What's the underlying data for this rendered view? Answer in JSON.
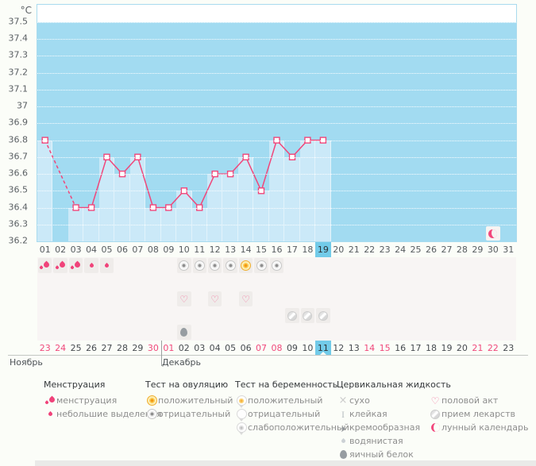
{
  "colors": {
    "accent_pink": "#f0467a",
    "plot_background": "#a2dbf1",
    "bar_fill": "#cbe9f8",
    "selected_day_highlight": "#72cbe9",
    "weekend_text": "#f0497b"
  },
  "chart_data": {
    "type": "line",
    "unit": "°C",
    "ylim": [
      36.2,
      37.5
    ],
    "yticks": [
      "37.5",
      "37.4",
      "37.3",
      "37.2",
      "37.1",
      "37",
      "36.9",
      "36.8",
      "36.7",
      "36.6",
      "36.5",
      "36.4",
      "36.3",
      "36.2"
    ],
    "x_days": [
      "01",
      "02",
      "03",
      "04",
      "05",
      "06",
      "07",
      "08",
      "09",
      "10",
      "11",
      "12",
      "13",
      "14",
      "15",
      "16",
      "17",
      "18",
      "19",
      "20",
      "21",
      "22",
      "23",
      "24",
      "25",
      "26",
      "27",
      "28",
      "29",
      "30",
      "31"
    ],
    "values": [
      36.8,
      null,
      36.4,
      36.4,
      36.7,
      36.6,
      36.7,
      36.4,
      36.4,
      36.5,
      36.4,
      36.6,
      36.6,
      36.7,
      36.5,
      36.8,
      36.7,
      36.8,
      36.8,
      null,
      null,
      null,
      null,
      null,
      null,
      null,
      null,
      null,
      null,
      null,
      null
    ],
    "selected_day_index": 18,
    "selected_cycle_day": "19",
    "lunar_event_day_index": 29,
    "grid": "horizontal-dotted",
    "missing_data_connector": "dashed"
  },
  "icon_grid": {
    "rows": [
      {
        "name": "menstruation-and-ovulation-tests",
        "cells": [
          {
            "day": 1,
            "icon": "drop-flow"
          },
          {
            "day": 2,
            "icon": "drop-flow"
          },
          {
            "day": 3,
            "icon": "drop-flow"
          },
          {
            "day": 4,
            "icon": "drop-spot"
          },
          {
            "day": 5,
            "icon": "drop-spot"
          },
          {
            "day": 10,
            "icon": "ovu-neg"
          },
          {
            "day": 11,
            "icon": "ovu-neg"
          },
          {
            "day": 12,
            "icon": "ovu-neg"
          },
          {
            "day": 13,
            "icon": "ovu-neg"
          },
          {
            "day": 14,
            "icon": "ovu-pos"
          },
          {
            "day": 15,
            "icon": "ovu-neg"
          },
          {
            "day": 16,
            "icon": "ovu-neg"
          }
        ]
      },
      {
        "name": "pregnancy-tests",
        "cells": []
      },
      {
        "name": "intercourse",
        "cells": [
          {
            "day": 10,
            "icon": "heart"
          },
          {
            "day": 12,
            "icon": "heart"
          },
          {
            "day": 14,
            "icon": "heart"
          }
        ]
      },
      {
        "name": "medication",
        "cells": [
          {
            "day": 17,
            "icon": "pill"
          },
          {
            "day": 18,
            "icon": "pill"
          },
          {
            "day": 19,
            "icon": "pill"
          }
        ]
      },
      {
        "name": "cervical-fluid",
        "cells": [
          {
            "day": 10,
            "icon": "eggwhite"
          }
        ]
      }
    ]
  },
  "calendar": {
    "months": [
      {
        "label": "Ноябрь",
        "start_index": 0
      },
      {
        "label": "Декабрь",
        "start_index": 8
      }
    ],
    "dates": [
      {
        "d": "23",
        "we": true
      },
      {
        "d": "24",
        "we": true
      },
      {
        "d": "25"
      },
      {
        "d": "26"
      },
      {
        "d": "27"
      },
      {
        "d": "28"
      },
      {
        "d": "29"
      },
      {
        "d": "30",
        "we": true
      },
      {
        "d": "01",
        "we": true
      },
      {
        "d": "02"
      },
      {
        "d": "03"
      },
      {
        "d": "04"
      },
      {
        "d": "05"
      },
      {
        "d": "06"
      },
      {
        "d": "07",
        "we": true
      },
      {
        "d": "08",
        "we": true
      },
      {
        "d": "09"
      },
      {
        "d": "10"
      },
      {
        "d": "11",
        "sel": true
      },
      {
        "d": "12"
      },
      {
        "d": "13"
      },
      {
        "d": "14",
        "we": true
      },
      {
        "d": "15",
        "we": true
      },
      {
        "d": "16"
      },
      {
        "d": "17"
      },
      {
        "d": "18"
      },
      {
        "d": "19"
      },
      {
        "d": "20"
      },
      {
        "d": "21",
        "we": true
      },
      {
        "d": "22",
        "we": true
      },
      {
        "d": "23"
      }
    ],
    "selected_date_index": 18
  },
  "legend": {
    "groups": [
      {
        "title": "Менструация",
        "items": [
          {
            "icon": "drop-flow",
            "label": "менструация"
          },
          {
            "icon": "drop-spot",
            "label": "небольшие выделения"
          }
        ]
      },
      {
        "title": "Тест на овуляцию",
        "items": [
          {
            "icon": "ovu-pos",
            "label": "положительный"
          },
          {
            "icon": "ovu-neg",
            "label": "отрицательный"
          }
        ]
      },
      {
        "title": "Тест на беременность",
        "items": [
          {
            "icon": "preg-pos",
            "label": "положительный"
          },
          {
            "icon": "preg-neg",
            "label": "отрицательный"
          },
          {
            "icon": "preg-weak",
            "label": "слабоположительный"
          }
        ]
      },
      {
        "title": "Цервикальная жидкость",
        "items": [
          {
            "icon": "dry",
            "label": "сухо"
          },
          {
            "icon": "sticky",
            "label": "клейкая"
          },
          {
            "icon": "creamy",
            "label": "кремообразная"
          },
          {
            "icon": "watery",
            "label": "водянистая"
          },
          {
            "icon": "eggwhite",
            "label": "яичный белок"
          }
        ]
      },
      {
        "title": "",
        "items": [
          {
            "icon": "heart",
            "label": "половой акт"
          },
          {
            "icon": "pill",
            "label": "прием лекарств"
          },
          {
            "icon": "moon",
            "label": "лунный календарь"
          }
        ]
      }
    ]
  }
}
